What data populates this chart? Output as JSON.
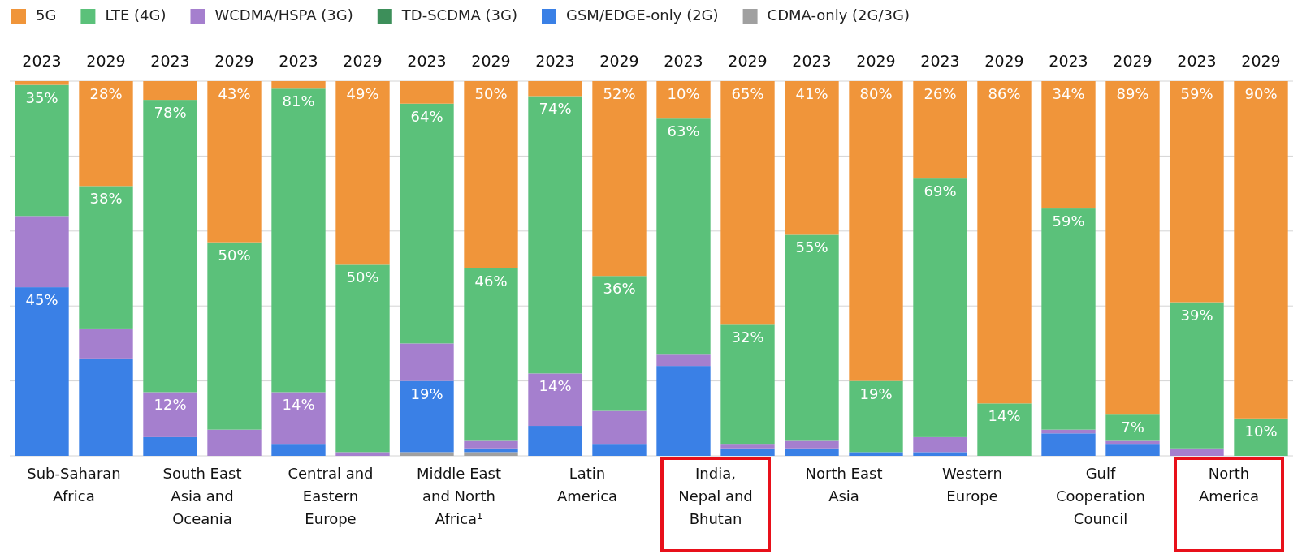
{
  "chart_data": {
    "type": "bar",
    "stacked": true,
    "categories": [
      "2023",
      "2029",
      "2023",
      "2029",
      "2023",
      "2029",
      "2023",
      "2029",
      "2023",
      "2029",
      "2023",
      "2029",
      "2023",
      "2029",
      "2023",
      "2029",
      "2023",
      "2029",
      "2023",
      "2029"
    ],
    "annotations": [
      "Sub-Saharan Africa",
      "South East Asia and Oceania",
      "Central and Eastern Europe",
      "Middle East and North Africa¹",
      "Latin America",
      "India, Nepal and Bhutan",
      "North East Asia",
      "Western Europe",
      "Gulf Cooperation Council",
      "North America"
    ],
    "ylim": [
      0,
      100
    ],
    "yticks": [
      {
        "value": 0,
        "label": null
      },
      {
        "value": 20,
        "label": null
      },
      {
        "value": 40,
        "label": null
      },
      {
        "value": 60,
        "label": null
      },
      {
        "value": 80,
        "label": null
      },
      {
        "value": 100,
        "label": null
      }
    ],
    "grid": "y",
    "tick_labels": "x",
    "legend": "top left",
    "series": [
      {
        "name": "CDMA-only (2G/3G)",
        "color": "#a0a0a0",
        "values": [
          0,
          0,
          0,
          0,
          0,
          0,
          1,
          1,
          0,
          0,
          0,
          0,
          0,
          0,
          0,
          0,
          0,
          0,
          0,
          0
        ]
      },
      {
        "name": "GSM/EDGE-only (2G)",
        "color": "#3a80e6",
        "values": [
          45,
          26,
          5,
          0,
          3,
          0,
          19,
          1,
          8,
          3,
          24,
          2,
          2,
          1,
          1,
          0,
          6,
          3,
          0,
          0
        ],
        "value_labels": [
          "45%",
          null,
          null,
          null,
          null,
          null,
          "19%",
          null,
          null,
          null,
          null,
          null,
          null,
          null,
          null,
          null,
          null,
          null,
          null,
          null
        ]
      },
      {
        "name": "TD-SCDMA (3G)",
        "color": "#3d8f5a",
        "values": [
          null,
          null,
          null,
          null,
          null,
          null,
          null,
          null,
          null,
          null,
          null,
          null,
          null,
          null,
          null,
          null,
          null,
          null,
          null,
          null
        ]
      },
      {
        "name": "WCDMA/HSPA (3G)",
        "color": "#a57fce",
        "values": [
          19,
          8,
          12,
          7,
          14,
          1,
          10,
          2,
          14,
          9,
          3,
          1,
          2,
          0,
          4,
          0,
          1,
          1,
          2,
          0
        ],
        "value_labels": [
          null,
          null,
          "12%",
          null,
          "14%",
          null,
          null,
          null,
          "14%",
          null,
          null,
          null,
          null,
          null,
          null,
          null,
          null,
          null,
          null,
          null
        ]
      },
      {
        "name": "LTE (4G)",
        "color": "#5bc17a",
        "values": [
          35,
          38,
          78,
          50,
          81,
          50,
          64,
          46,
          74,
          36,
          63,
          32,
          55,
          19,
          69,
          14,
          59,
          7,
          39,
          10
        ],
        "value_labels": [
          "35%",
          "38%",
          "78%",
          "50%",
          "81%",
          "50%",
          "64%",
          "46%",
          "74%",
          "36%",
          "63%",
          "32%",
          "55%",
          "19%",
          "69%",
          "14%",
          "59%",
          "7%",
          "39%",
          "10%"
        ]
      },
      {
        "name": "5G",
        "color": "#f0953a",
        "values": [
          1,
          28,
          5,
          43,
          2,
          49,
          6,
          50,
          4,
          52,
          10,
          65,
          41,
          80,
          26,
          86,
          34,
          89,
          59,
          90
        ],
        "value_labels": [
          null,
          "28%",
          null,
          "43%",
          null,
          "49%",
          null,
          "50%",
          null,
          "52%",
          "10%",
          "65%",
          "41%",
          "80%",
          "26%",
          "86%",
          "34%",
          "89%",
          "59%",
          "90%"
        ]
      }
    ]
  }
}
